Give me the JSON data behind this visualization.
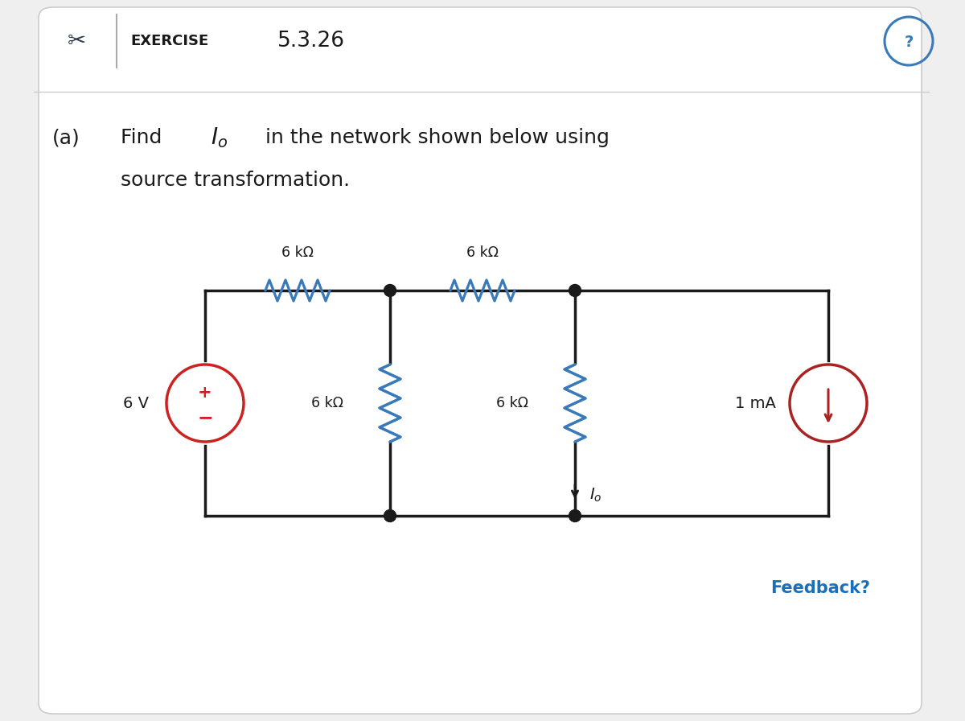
{
  "title": "EXERCISE",
  "exercise_number": "5.3.26",
  "bg_color": "#efefef",
  "card_color": "#ffffff",
  "wire_color": "#1a1a1a",
  "resistor_color": "#3a7ab8",
  "source_v_color": "#cc2222",
  "source_i_color": "#aa2222",
  "text_color": "#1a1a1a",
  "feedback_color": "#1a6fba",
  "question_circle_color": "#3a7ab8",
  "resistor_labels": [
    "6 kΩ",
    "6 kΩ",
    "6 kΩ",
    "6 kΩ"
  ],
  "voltage_source_label": "6 V",
  "current_source_label": "1 mA",
  "feedback_label": "Feedback?"
}
